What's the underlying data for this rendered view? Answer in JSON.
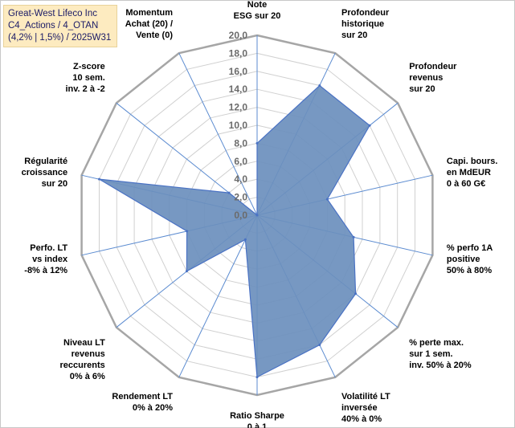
{
  "title_box": {
    "line1": "Great-West Lifeco Inc",
    "line2": "C4_Actions / 4_OTAN",
    "line3": "(4,2% | 1,5%) / 2025W31"
  },
  "colors": {
    "fill": "#6b8fbd",
    "stroke": "#4a72c4",
    "grid": "#d0d0d0",
    "outer_ring": "#a6a6a6",
    "axis_line": "#5b8bd0",
    "title_bg": "#fdebc0",
    "title_text": "#1a1a66"
  },
  "chart_data": {
    "type": "radar",
    "range": [
      0,
      20
    ],
    "tick_step": 2,
    "tick_labels": [
      "0,0",
      "2,0",
      "4,0",
      "6,0",
      "8,0",
      "10,0",
      "12,0",
      "14,0",
      "16,0",
      "18,0",
      "20,0"
    ],
    "axes": [
      [
        "Note",
        "ESG sur 20"
      ],
      [
        "Profondeur",
        "historique",
        "sur 20"
      ],
      [
        "Profondeur",
        "revenus",
        "sur 20"
      ],
      [
        "Capi. bours.",
        "en MdEUR",
        "0 à 60 G€"
      ],
      [
        "% perfo 1A",
        "positive",
        "50% à 80%"
      ],
      [
        "% perte max.",
        "sur 1 sem.",
        "inv. 50% à 20%"
      ],
      [
        "Volatilité LT",
        "inversée",
        "40% à 0%"
      ],
      [
        "Ratio Sharpe",
        "0 à 1"
      ],
      [
        "Rendement LT",
        "0% à 20%"
      ],
      [
        "Niveau LT",
        "revenus",
        "reccurents",
        "0% à 6%"
      ],
      [
        "Perfo. LT",
        "vs index",
        "-8% à 12%"
      ],
      [
        "Régularité",
        "croissance",
        "sur 20"
      ],
      [
        "Z-score",
        "10 sem.",
        "inv. 2 à -2"
      ],
      [
        "Momentum",
        "Achat (20) /",
        "Vente (0)"
      ]
    ],
    "values": [
      8,
      16,
      16,
      8,
      11,
      14,
      16,
      18,
      3,
      10,
      8,
      18,
      4,
      0
    ],
    "grid": true,
    "legend": "none"
  }
}
